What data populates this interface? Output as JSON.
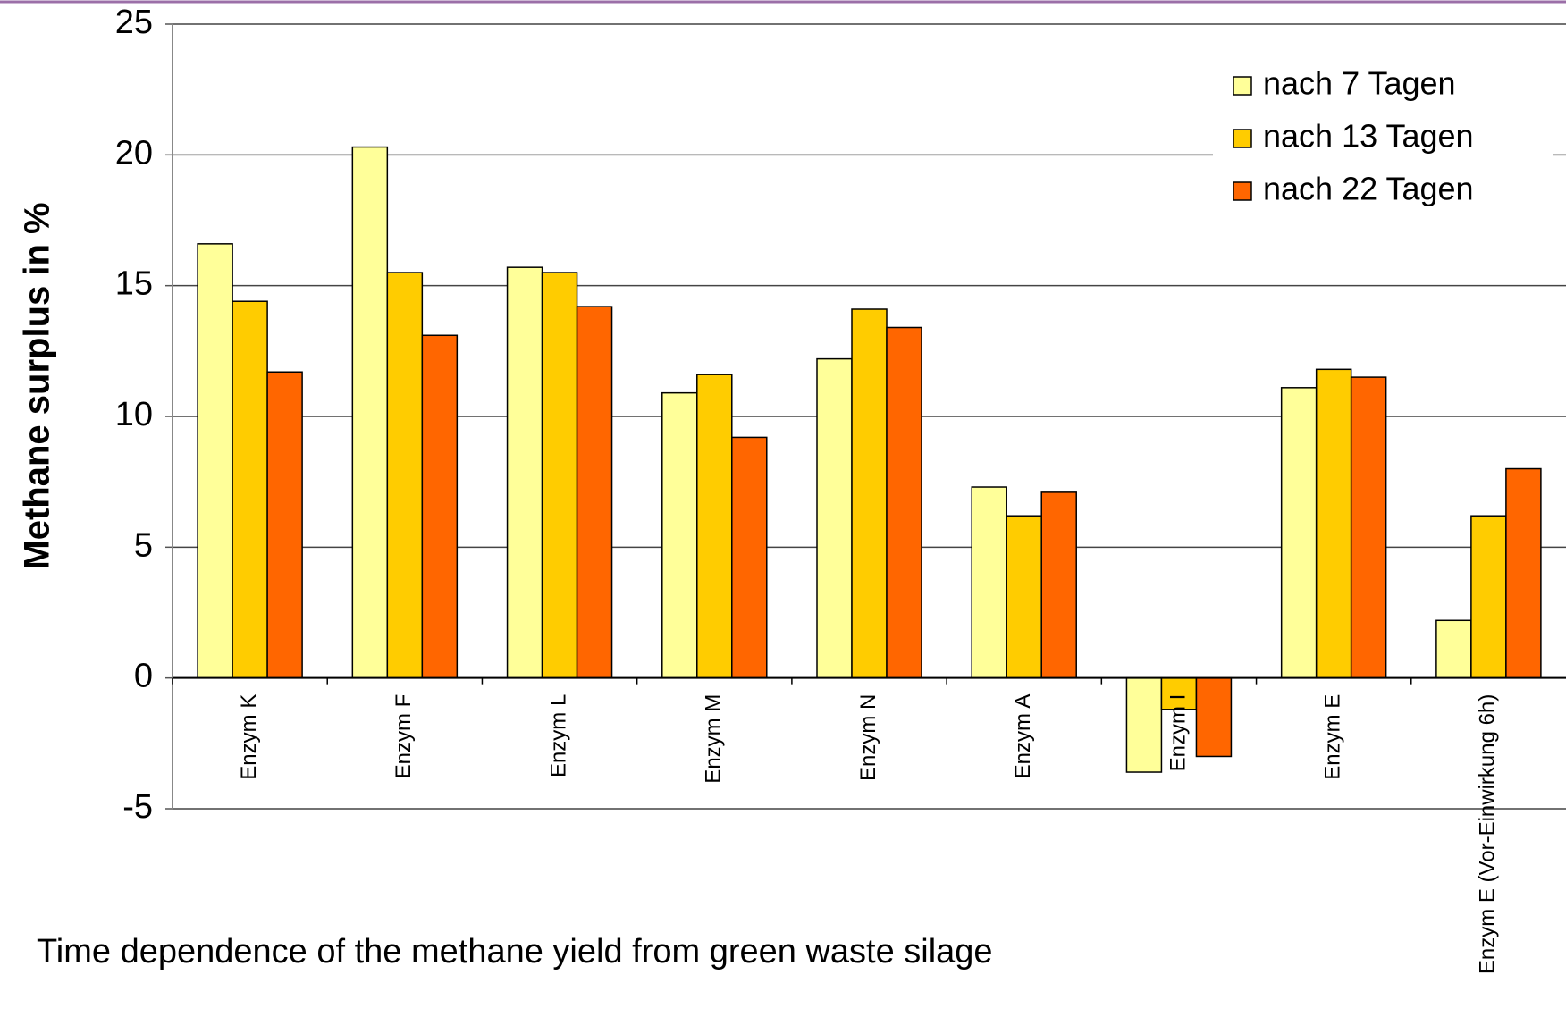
{
  "chart_data": {
    "type": "bar",
    "ylabel": "Methane surplus in %",
    "caption": "Time dependence of the methane yield from green waste silage",
    "categories": [
      "Enzym K",
      "Enzym F",
      "Enzym L",
      "Enzym M",
      "Enzym N",
      "Enzym A",
      "Enzym I",
      "Enzym E",
      "Enzym E (Vor-Einwirkung 6h)"
    ],
    "series": [
      {
        "name": "nach 7 Tagen",
        "color": "#ffff99",
        "values": [
          16.6,
          20.3,
          15.7,
          10.9,
          12.2,
          7.3,
          -3.6,
          11.1,
          2.2
        ]
      },
      {
        "name": "nach 13 Tagen",
        "color": "#ffcc00",
        "values": [
          14.4,
          15.5,
          15.5,
          11.6,
          14.1,
          6.2,
          -1.2,
          11.8,
          6.2
        ]
      },
      {
        "name": "nach 22 Tagen",
        "color": "#ff6600",
        "values": [
          11.7,
          13.1,
          14.2,
          9.2,
          13.4,
          7.1,
          -3.0,
          11.5,
          8.0
        ]
      }
    ],
    "ylim": [
      -5,
      25
    ],
    "yticks": [
      -5,
      0,
      5,
      10,
      15,
      20,
      25
    ],
    "grid": true,
    "legend": "upper right"
  }
}
